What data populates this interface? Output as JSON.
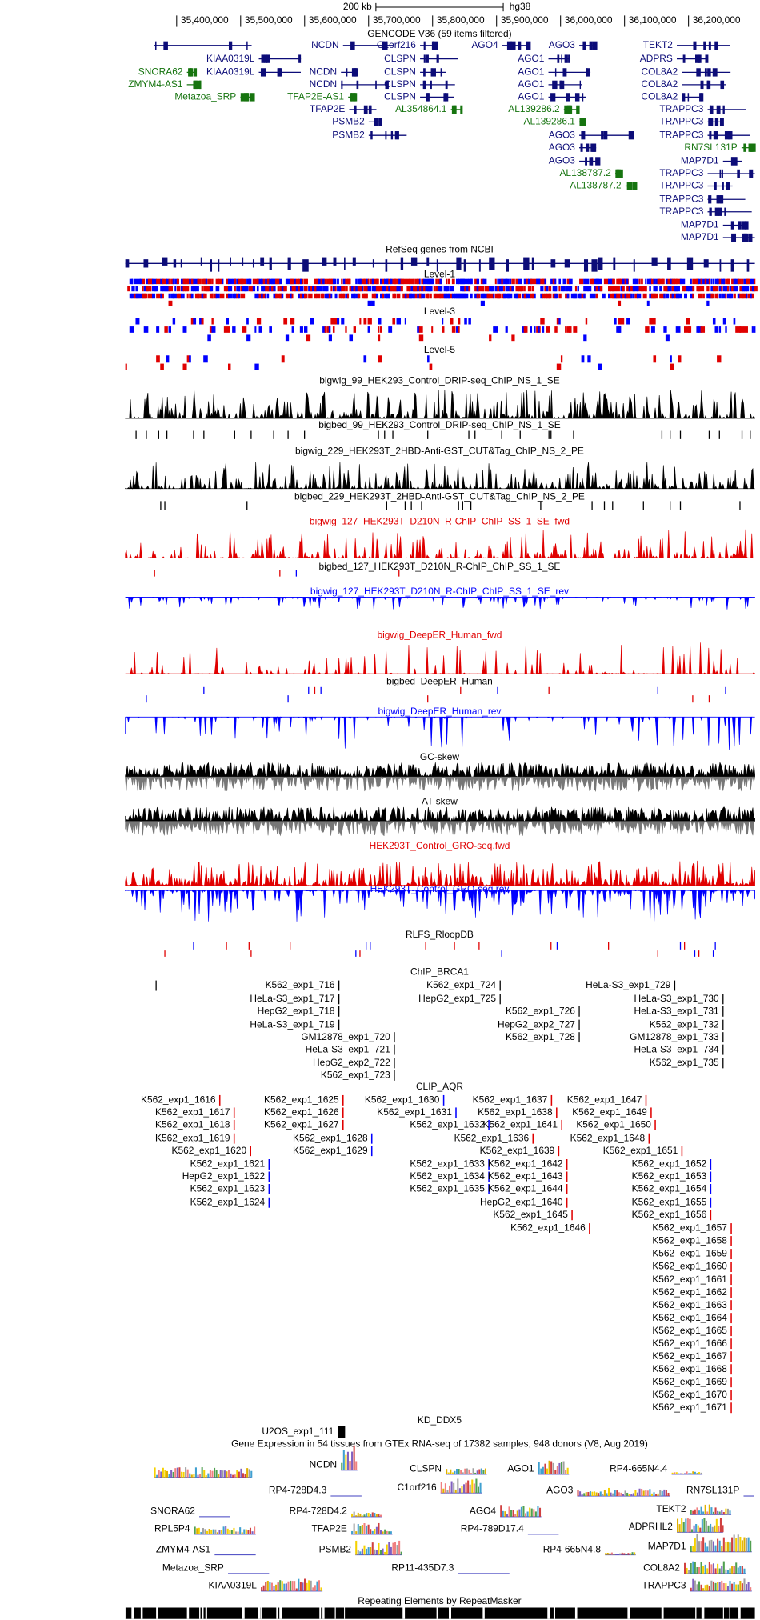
{
  "header": {
    "scale": "200 kb",
    "assembly": "hg38",
    "positions": [
      "35,400,000",
      "35,500,000",
      "35,600,000",
      "35,700,000",
      "35,800,000",
      "35,900,000",
      "36,000,000",
      "36,100,000",
      "36,200,000"
    ]
  },
  "gencode": {
    "title": "GENCODE V36 (59 items filtered)",
    "genes": [
      "NCDN",
      "C1orf216",
      "AGO4",
      "AGO3",
      "TEKT2",
      "KIAA0319L",
      "CLSPN",
      "AGO1",
      "ADPRS",
      "SNORA62",
      "KIAA0319L",
      "NCDN",
      "CLSPN",
      "AGO1",
      "COL8A2",
      "ZMYM4-AS1",
      "NCDN",
      "CLSPN",
      "AGO1",
      "COL8A2",
      "Metazoa_SRP",
      "TFAP2E-AS1",
      "CLSPN",
      "AGO1",
      "COL8A2",
      "TFAP2E",
      "AL354864.1",
      "AL139286.2",
      "TRAPPC3",
      "PSMB2",
      "AL139286.1",
      "TRAPPC3",
      "PSMB2",
      "AGO3",
      "TRAPPC3",
      "AGO3",
      "RN7SL131P",
      "AGO3",
      "MAP7D1",
      "AL138787.2",
      "TRAPPC3",
      "AL138787.2",
      "TRAPPC3",
      "TRAPPC3",
      "TRAPPC3",
      "MAP7D1",
      "MAP7D1"
    ]
  },
  "tracks": [
    "RefSeq genes from NCBI",
    "Level-1",
    "Level-3",
    "Level-5",
    "bigwig_99_HEK293_Control_DRIP-seq_ChIP_NS_1_SE",
    "bigbed_99_HEK293_Control_DRIP-seq_ChIP_NS_1_SE",
    "bigwig_229_HEK293T_2HBD-Anti-GST_CUT&Tag_ChIP_NS_2_PE",
    "bigbed_229_HEK293T_2HBD-Anti-GST_CUT&Tag_ChIP_NS_2_PE",
    "bigwig_127_HEK293T_D210N_R-ChIP_ChIP_SS_1_SE_fwd",
    "bigbed_127_HEK293T_D210N_R-ChIP_ChIP_SS_1_SE",
    "bigwig_127_HEK293T_D210N_R-ChIP_ChIP_SS_1_SE_rev",
    "bigwig_DeepER_Human_fwd",
    "bigbed_DeepER_Human",
    "bigwig_DeepER_Human_rev",
    "GC-skew",
    "AT-skew",
    "HEK293T_Control_GRO-seq.fwd",
    "HEK293T_Control_GRO-seq.rev",
    "RLFS_RloopDB"
  ],
  "chip_brca1": {
    "title": "ChIP_BRCA1",
    "items": [
      "K562_exp1_716",
      "HeLa-S3_exp1_717",
      "HepG2_exp1_718",
      "HeLa-S3_exp1_719",
      "GM12878_exp1_720",
      "HeLa-S3_exp1_721",
      "HepG2_exp2_722",
      "K562_exp1_723",
      "K562_exp1_724",
      "HepG2_exp1_725",
      "K562_exp1_726",
      "HepG2_exp2_727",
      "K562_exp1_728",
      "HeLa-S3_exp1_729",
      "HeLa-S3_exp1_730",
      "HeLa-S3_exp1_731",
      "K562_exp1_732",
      "GM12878_exp1_733",
      "HeLa-S3_exp1_734",
      "K562_exp1_735"
    ]
  },
  "clip_aqr": {
    "title": "CLIP_AQR",
    "items": [
      "K562_exp1_1616",
      "K562_exp1_1617",
      "K562_exp1_1618",
      "K562_exp1_1619",
      "K562_exp1_1620",
      "K562_exp1_1621",
      "HepG2_exp1_1622",
      "K562_exp1_1623",
      "K562_exp1_1624",
      "K562_exp1_1625",
      "K562_exp1_1626",
      "K562_exp1_1627",
      "K562_exp1_1628",
      "K562_exp1_1629",
      "K562_exp1_1630",
      "K562_exp1_1631",
      "K562_exp1_1632",
      "K562_exp1_1633",
      "K562_exp1_1634",
      "K562_exp1_1635",
      "K562_exp1_1636",
      "K562_exp1_1637",
      "K562_exp1_1638",
      "K562_exp1_1639",
      "HepG2_exp1_1640",
      "K562_exp1_1641",
      "K562_exp1_1642",
      "K562_exp1_1643",
      "K562_exp1_1644",
      "K562_exp1_1645",
      "K562_exp1_1646",
      "K562_exp1_1647",
      "K562_exp1_1648",
      "K562_exp1_1649",
      "K562_exp1_1650",
      "K562_exp1_1651",
      "K562_exp1_1652",
      "K562_exp1_1653",
      "K562_exp1_1654",
      "K562_exp1_1655",
      "K562_exp1_1656",
      "K562_exp1_1657",
      "K562_exp1_1658",
      "K562_exp1_1659",
      "K562_exp1_1660",
      "K562_exp1_1661",
      "K562_exp1_1662",
      "K562_exp1_1663",
      "K562_exp1_1664",
      "K562_exp1_1665",
      "K562_exp1_1666",
      "K562_exp1_1667",
      "K562_exp1_1668",
      "K562_exp1_1669",
      "K562_exp1_1670",
      "K562_exp1_1671"
    ]
  },
  "kd_ddx5": {
    "title": "KD_DDX5",
    "items": [
      "U2OS_exp1_111"
    ]
  },
  "gtex": {
    "title": "Gene Expression in 54 tissues from GTEx RNA-seq of 17382 samples, 948 donors (V8, Aug 2019)",
    "genes": [
      "NCDN",
      "CLSPN",
      "AGO1",
      "RP4-665N4.4",
      "RP4-728D4.3",
      "C1orf216",
      "AGO3",
      "RN7SL131P",
      "SNORA62",
      "RP4-728D4.2",
      "AGO4",
      "TEKT2",
      "RPL5P4",
      "TFAP2E",
      "RP4-789D17.4",
      "ADPRHL2",
      "ZMYM4-AS1",
      "PSMB2",
      "RP4-665N4.8",
      "MAP7D1",
      "Metazoa_SRP",
      "RP11-435D7.3",
      "COL8A2",
      "KIAA0319L",
      "TRAPPC3"
    ]
  },
  "repeatmasker": {
    "title": "Repeating Elements by RepeatMasker"
  }
}
